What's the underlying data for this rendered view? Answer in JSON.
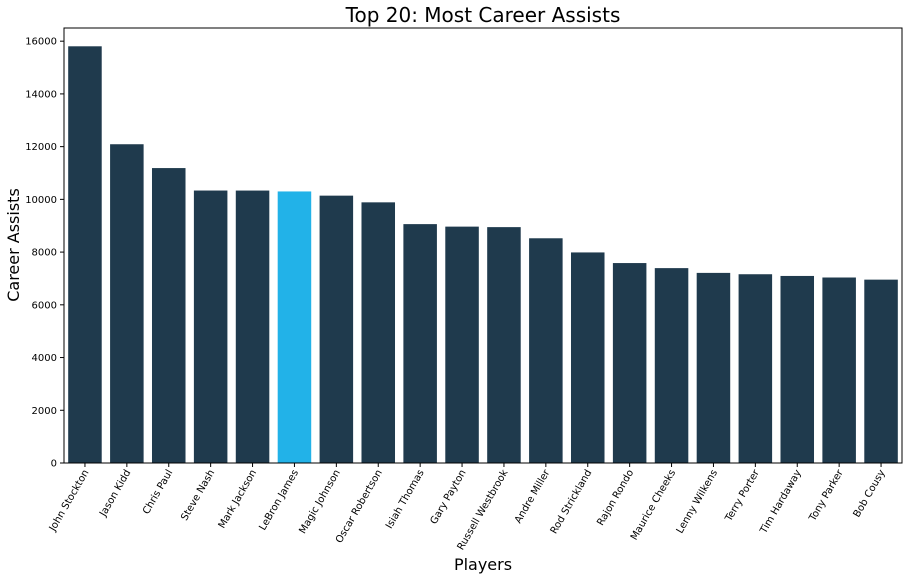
{
  "chart_data": {
    "type": "bar",
    "title": "Top 20: Most Career Assists",
    "xlabel": "Players",
    "ylabel": "Career Assists",
    "ylim": [
      0,
      16500
    ],
    "yticks": [
      0,
      2000,
      4000,
      6000,
      8000,
      10000,
      12000,
      14000,
      16000
    ],
    "grid": false,
    "categories": [
      "John Stockton",
      "Jason Kidd",
      "Chris Paul",
      "Steve Nash",
      "Mark Jackson",
      "LeBron James",
      "Magic Johnson",
      "Oscar Robertson",
      "Isiah Thomas",
      "Gary Payton",
      "Russell Westbrook",
      "Andre Miller",
      "Rod Strickland",
      "Rajon Rondo",
      "Maurice Cheeks",
      "Lenny Wilkens",
      "Terry Porter",
      "Tim Hardaway",
      "Tony Parker",
      "Bob Cousy"
    ],
    "values": [
      15806,
      12091,
      11187,
      10335,
      10334,
      10300,
      10141,
      9887,
      9061,
      8966,
      8947,
      8524,
      7987,
      7584,
      7392,
      7211,
      7160,
      7095,
      7036,
      6955
    ],
    "highlight": "LeBron James",
    "colors": {
      "bar": "#1f3a4d",
      "highlight": "#22b2e8"
    }
  }
}
